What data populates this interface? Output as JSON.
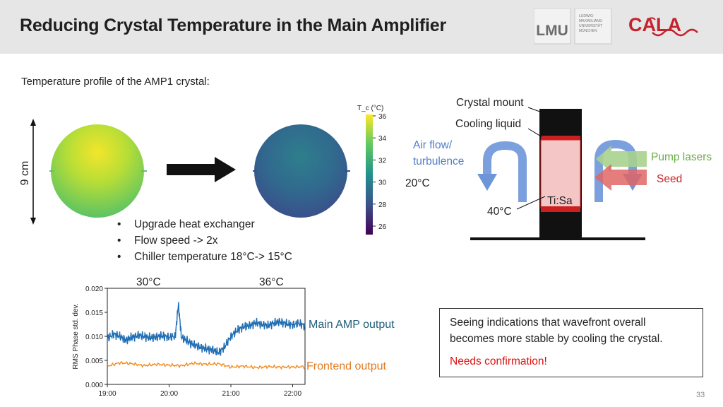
{
  "title": "Reducing Crystal Temperature in the Main Amplifier",
  "logos": {
    "lmu": "LMU",
    "lmu_text": "LUDWIG-MAXIMILIANS-UNIVERSITÄT MÜNCHEN",
    "cala": "CALA"
  },
  "subtitle": "Temperature profile of the AMP1 crystal:",
  "size_label": "9 cm",
  "colorbar": {
    "label": "T_c (°C)",
    "ticks": [
      "36",
      "34",
      "32",
      "30",
      "28",
      "26"
    ]
  },
  "bullets": [
    "Upgrade heat exchanger",
    "Flow speed -> 2x",
    "Chiller temperature 18°C-> 15°C"
  ],
  "diagram": {
    "crystal_mount": "Crystal mount",
    "cooling_liquid": "Cooling liquid",
    "air_flow_1": "Air flow/",
    "air_flow_2": "turbulence",
    "pump_lasers": "Pump lasers",
    "seed": "Seed",
    "t_20": "20°C",
    "t_40": "40°C",
    "crystal": "Ti:Sa"
  },
  "chart_labels": {
    "temp_30": "30°C",
    "temp_36": "36°C",
    "main_amp": "Main AMP output",
    "frontend": "Frontend output"
  },
  "chart_data": {
    "type": "line",
    "ylabel": "RMS Phase std. dev.",
    "xlabel": "",
    "ylim": [
      0.0,
      0.02
    ],
    "yticks": [
      "0.020",
      "0.015",
      "0.010",
      "0.005",
      "0.000"
    ],
    "xticks": [
      "19:00",
      "20:00",
      "21:00",
      "22:00"
    ],
    "xlim": [
      19.0,
      22.2
    ],
    "series": [
      {
        "name": "Main AMP output",
        "color": "#1f6db3",
        "x": [
          19.0,
          19.1,
          19.2,
          19.3,
          19.4,
          19.5,
          19.6,
          19.7,
          19.8,
          19.9,
          20.0,
          20.1,
          20.15,
          20.2,
          20.3,
          20.4,
          20.5,
          20.6,
          20.7,
          20.8,
          20.9,
          21.0,
          21.1,
          21.2,
          21.3,
          21.4,
          21.5,
          21.6,
          21.7,
          21.8,
          21.9,
          22.0,
          22.1,
          22.2
        ],
        "values": [
          0.0095,
          0.0105,
          0.01,
          0.0092,
          0.0098,
          0.0102,
          0.01,
          0.0097,
          0.0099,
          0.0101,
          0.0098,
          0.01,
          0.0167,
          0.0098,
          0.009,
          0.0082,
          0.0078,
          0.0074,
          0.0072,
          0.0066,
          0.0078,
          0.01,
          0.0112,
          0.012,
          0.0122,
          0.0128,
          0.0125,
          0.0122,
          0.0128,
          0.013,
          0.0126,
          0.0124,
          0.0127,
          0.0122
        ]
      },
      {
        "name": "Frontend output",
        "color": "#f28c22",
        "x": [
          19.0,
          19.2,
          19.4,
          19.6,
          19.8,
          20.0,
          20.2,
          20.4,
          20.6,
          20.8,
          21.0,
          21.2,
          21.4,
          21.6,
          21.8,
          22.0,
          22.2
        ],
        "values": [
          0.0038,
          0.0045,
          0.0043,
          0.0039,
          0.0042,
          0.004,
          0.0039,
          0.0044,
          0.0042,
          0.0043,
          0.0036,
          0.0038,
          0.0035,
          0.0037,
          0.0036,
          0.0036,
          0.0037
        ]
      }
    ]
  },
  "note": {
    "line1": "Seeing indications that wavefront overall",
    "line2": "becomes more stable by cooling the crystal.",
    "warn": "Needs confirmation!"
  },
  "page_number": "33"
}
